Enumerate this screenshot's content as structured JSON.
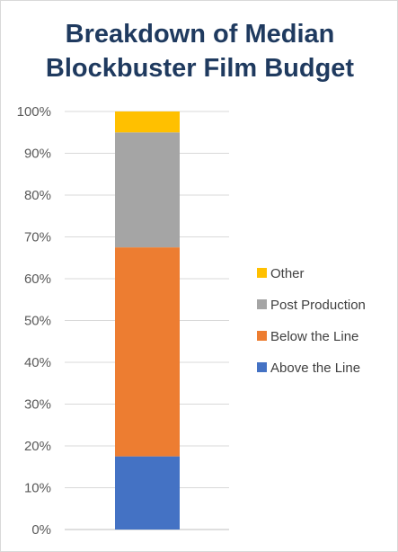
{
  "chart_data": {
    "type": "bar",
    "stacked": true,
    "normalized": true,
    "title_lines": [
      "Breakdown of Median",
      "Blockbuster Film Budget"
    ],
    "categories": [
      ""
    ],
    "series": [
      {
        "name": "Above the Line",
        "values": [
          17.5
        ],
        "color": "#4472c4"
      },
      {
        "name": "Below the Line",
        "values": [
          50.0
        ],
        "color": "#ed7d31"
      },
      {
        "name": "Post Production",
        "values": [
          27.5
        ],
        "color": "#a5a5a5"
      },
      {
        "name": "Other",
        "values": [
          5.0
        ],
        "color": "#ffc000"
      }
    ],
    "ylim": [
      0,
      100
    ],
    "yticks": [
      "0%",
      "10%",
      "20%",
      "30%",
      "40%",
      "50%",
      "60%",
      "70%",
      "80%",
      "90%",
      "100%"
    ],
    "grid": true,
    "legend_position": "right",
    "legend_order": [
      "Other",
      "Post Production",
      "Below the Line",
      "Above the Line"
    ]
  }
}
